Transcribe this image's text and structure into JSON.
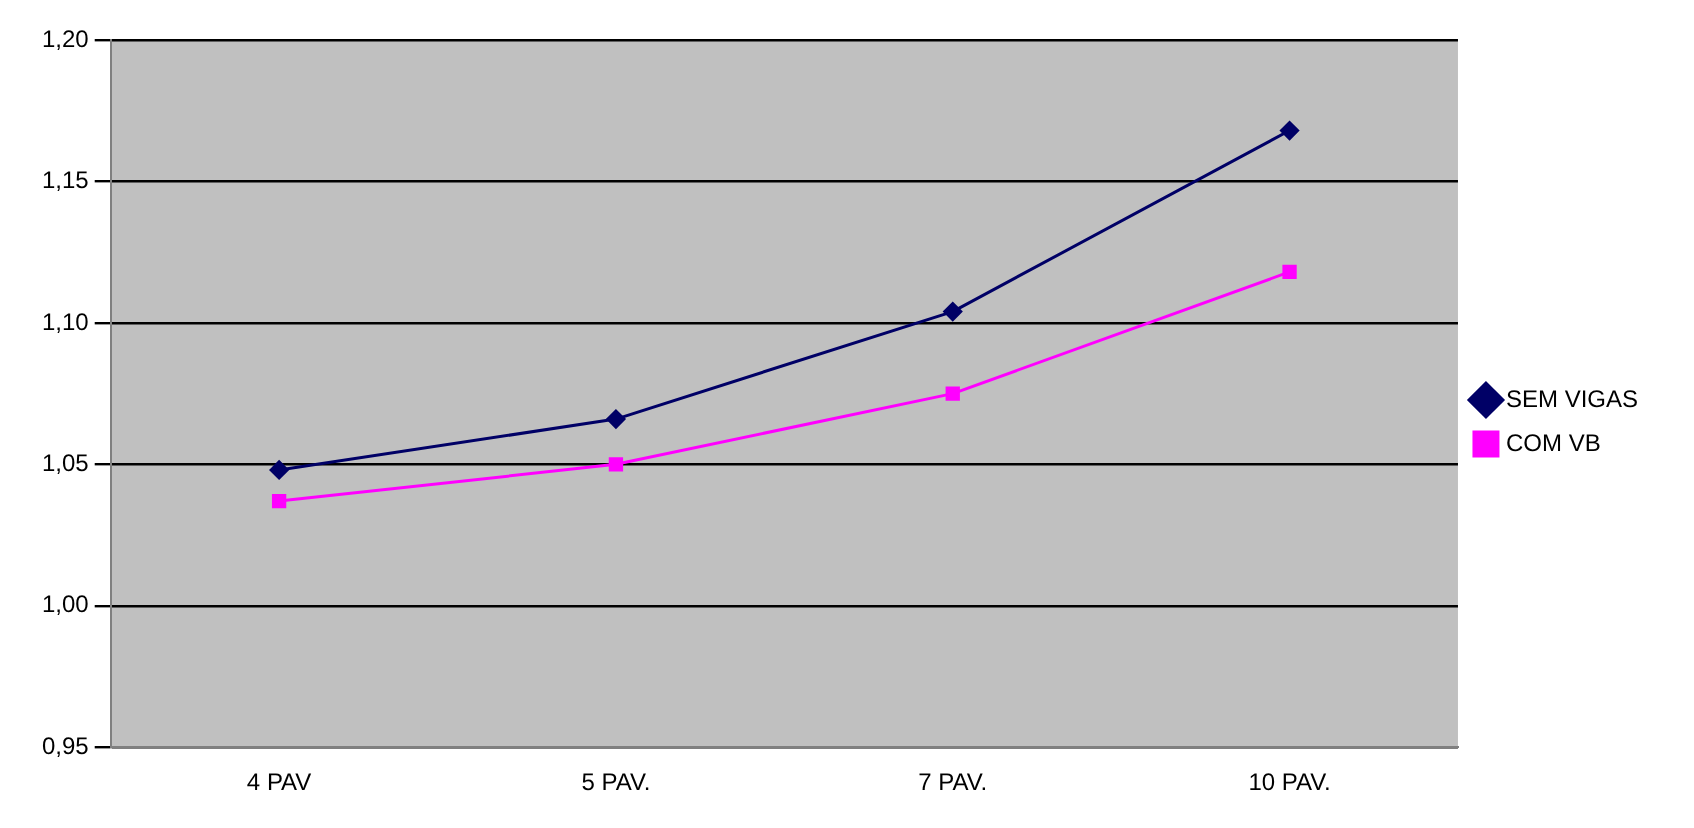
{
  "chart_data": {
    "type": "line",
    "categories": [
      "4 PAV",
      "5 PAV.",
      "7 PAV.",
      "10 PAV."
    ],
    "series": [
      {
        "name": "SEM VIGAS",
        "color": "#000066",
        "marker": "diamond",
        "values": [
          1.048,
          1.066,
          1.104,
          1.168
        ]
      },
      {
        "name": "COM VB",
        "color": "#ff00ff",
        "marker": "square",
        "values": [
          1.037,
          1.05,
          1.075,
          1.118
        ]
      }
    ],
    "ylim": [
      0.95,
      1.2
    ],
    "yticks": [
      {
        "value": 0.95,
        "label": "0,95"
      },
      {
        "value": 1.0,
        "label": "1,00"
      },
      {
        "value": 1.05,
        "label": "1,05"
      },
      {
        "value": 1.1,
        "label": "1,10"
      },
      {
        "value": 1.15,
        "label": "1,15"
      },
      {
        "value": 1.2,
        "label": "1,20"
      }
    ],
    "grid": "y",
    "legend": "right",
    "line_style": "solid"
  }
}
